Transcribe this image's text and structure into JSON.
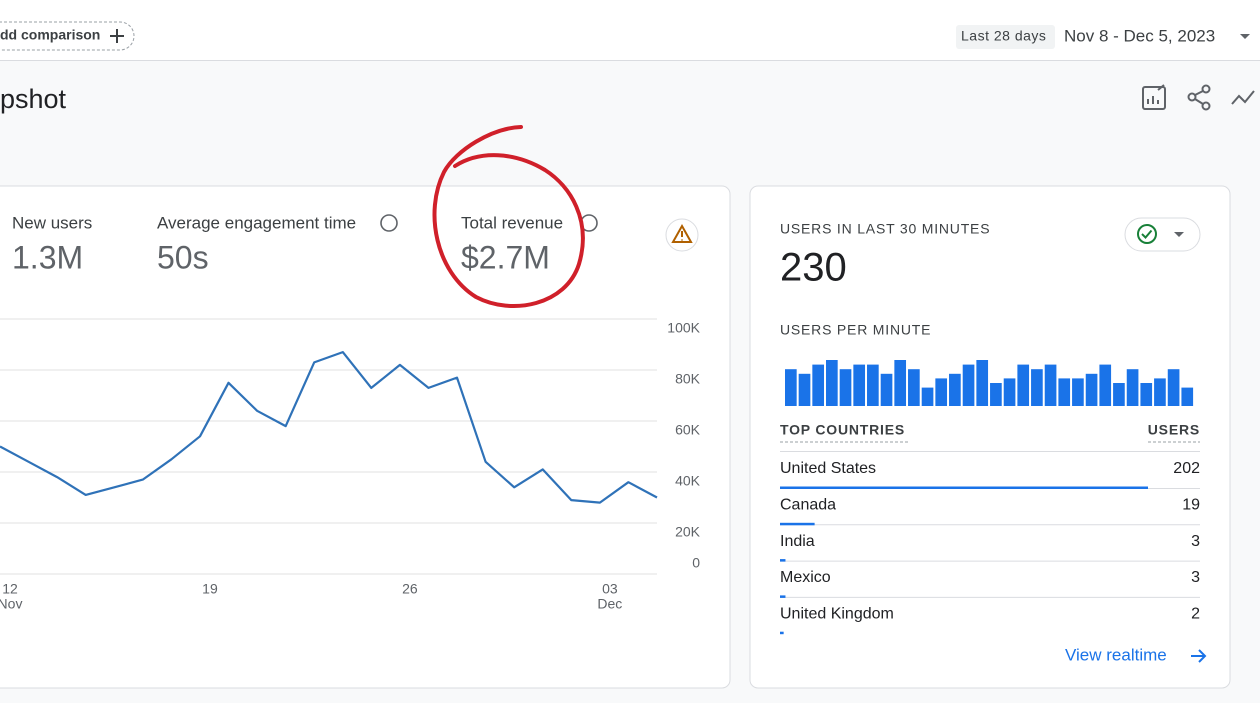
{
  "header": {
    "comparison": "dd comparison",
    "range_label": "Last 28 days",
    "date_range": "Nov 8 - Dec 5, 2023"
  },
  "page_title": "pshot",
  "metrics": [
    {
      "label": "New users",
      "value": "1.3M"
    },
    {
      "label": "Average engagement time",
      "value": "50s"
    },
    {
      "label": "Total revenue",
      "value": "$2.7M"
    }
  ],
  "chart_data": [
    {
      "type": "line",
      "categories": [
        "12",
        null,
        null,
        null,
        null,
        null,
        null,
        "19",
        null,
        null,
        null,
        null,
        null,
        null,
        "26",
        null,
        null,
        null,
        null,
        null,
        null,
        "03",
        null,
        null
      ],
      "x_group_labels": [
        "Nov",
        "Dec"
      ],
      "series": [
        {
          "color": "#2f72b8",
          "values": [
            50000,
            44000,
            38000,
            31000,
            34000,
            37000,
            45000,
            54000,
            75000,
            64000,
            58000,
            83000,
            87000,
            73000,
            82000,
            73000,
            77000,
            44000,
            34000,
            41000,
            29000,
            28000,
            36000,
            30000
          ]
        }
      ],
      "ylim": [
        0,
        100000
      ],
      "yticks": [
        0,
        {
          "value": 20000,
          "label": "20K"
        },
        {
          "value": 40000,
          "label": "40K"
        },
        {
          "value": 60000,
          "label": "60K"
        },
        {
          "value": 80000,
          "label": "80K"
        },
        {
          "value": 100000,
          "label": "100K"
        }
      ],
      "grid": true
    },
    {
      "type": "bar",
      "title": "USERS PER MINUTE",
      "values": [
        8,
        7,
        9,
        10,
        8,
        9,
        9,
        7,
        10,
        8,
        4,
        6,
        7,
        9,
        10,
        5,
        6,
        9,
        8,
        9,
        6,
        6,
        7,
        9,
        5,
        8,
        5,
        6,
        8,
        4
      ],
      "color": "#1a73e8",
      "ylim": [
        0,
        10
      ]
    }
  ],
  "realtime": {
    "title": "USERS IN LAST 30 MINUTES",
    "total": 230,
    "table": {
      "headers": [
        "TOP COUNTRIES",
        "USERS"
      ],
      "rows": [
        {
          "name": "United States",
          "value": 202
        },
        {
          "name": "Canada",
          "value": 19
        },
        {
          "name": "India",
          "value": 3
        },
        {
          "name": "Mexico",
          "value": 3
        },
        {
          "name": "United Kingdom",
          "value": 2
        }
      ]
    },
    "link": "View realtime"
  }
}
